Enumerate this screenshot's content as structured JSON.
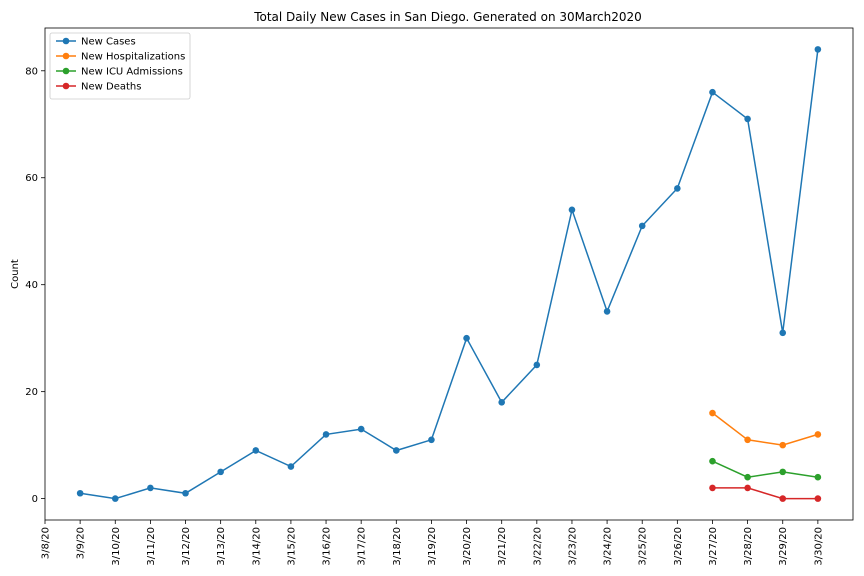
{
  "chart_data": {
    "type": "line",
    "title": "Total Daily New Cases in San Diego. Generated on 30March2020",
    "xlabel": "",
    "ylabel": "Count",
    "x_ticks": [
      "3/8/20",
      "3/9/20",
      "3/10/20",
      "3/11/20",
      "3/12/20",
      "3/13/20",
      "3/14/20",
      "3/15/20",
      "3/16/20",
      "3/17/20",
      "3/18/20",
      "3/19/20",
      "3/20/20",
      "3/21/20",
      "3/22/20",
      "3/23/20",
      "3/24/20",
      "3/25/20",
      "3/26/20",
      "3/27/20",
      "3/28/20",
      "3/29/20",
      "3/30/20"
    ],
    "x_tick_rotation": "vertical",
    "xlim": [
      "3/8/20",
      "3/31/20"
    ],
    "ylim": [
      -4,
      88
    ],
    "y_ticks": [
      0,
      20,
      40,
      60,
      80
    ],
    "grid": false,
    "legend_position": "upper-left",
    "series": [
      {
        "name": "New Cases",
        "color": "#1f77b4",
        "x": [
          "3/9/20",
          "3/10/20",
          "3/11/20",
          "3/12/20",
          "3/13/20",
          "3/14/20",
          "3/15/20",
          "3/16/20",
          "3/17/20",
          "3/18/20",
          "3/19/20",
          "3/20/20",
          "3/21/20",
          "3/22/20",
          "3/23/20",
          "3/24/20",
          "3/25/20",
          "3/26/20",
          "3/27/20",
          "3/28/20",
          "3/29/20",
          "3/30/20"
        ],
        "values": [
          1,
          0,
          2,
          1,
          5,
          9,
          6,
          12,
          13,
          9,
          11,
          30,
          18,
          25,
          54,
          35,
          51,
          58,
          76,
          71,
          31,
          84
        ]
      },
      {
        "name": "New Hospitalizations",
        "color": "#ff7f0e",
        "x": [
          "3/27/20",
          "3/28/20",
          "3/29/20",
          "3/30/20"
        ],
        "values": [
          16,
          11,
          10,
          12
        ]
      },
      {
        "name": "New ICU Admissions",
        "color": "#2ca02c",
        "x": [
          "3/27/20",
          "3/28/20",
          "3/29/20",
          "3/30/20"
        ],
        "values": [
          7,
          4,
          5,
          4
        ]
      },
      {
        "name": "New Deaths",
        "color": "#d62728",
        "x": [
          "3/27/20",
          "3/28/20",
          "3/29/20",
          "3/30/20"
        ],
        "values": [
          2,
          2,
          0,
          0
        ]
      }
    ]
  }
}
